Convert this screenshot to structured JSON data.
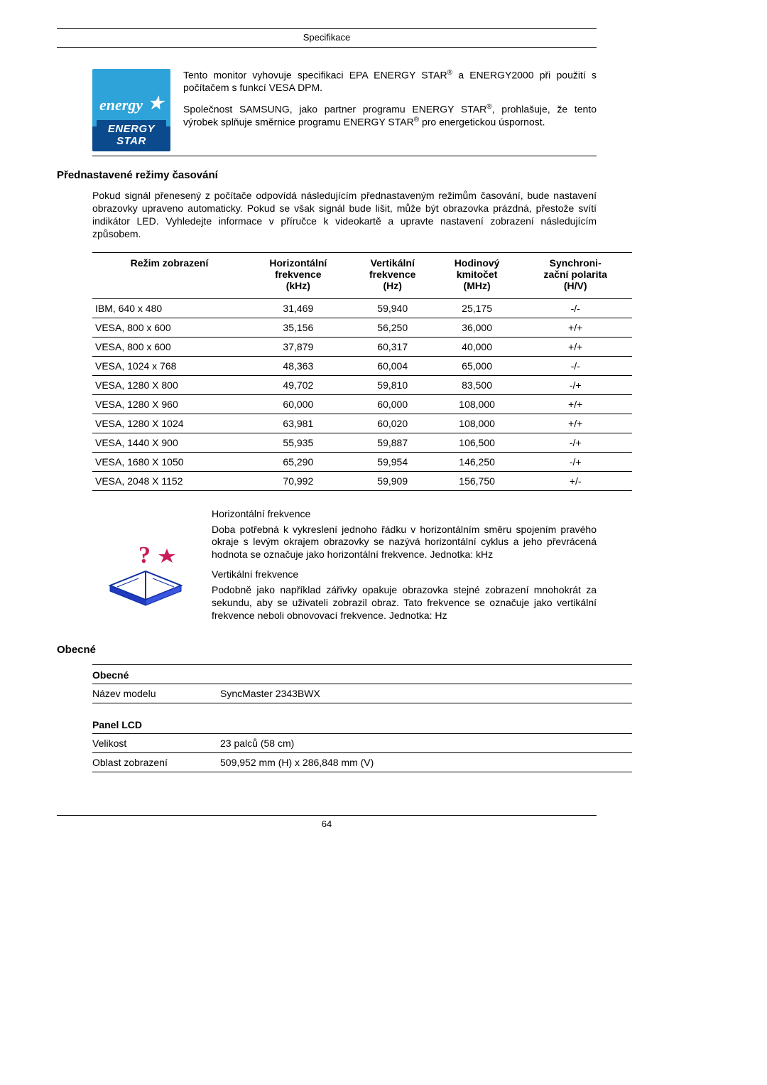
{
  "page": {
    "header": "Specifikace",
    "number": "64"
  },
  "energy": {
    "logo_script": "energy",
    "logo_bar": "ENERGY STAR",
    "para1_a": "Tento monitor vyhovuje specifikaci EPA ENERGY STAR",
    "para1_b": " a ENERGY2000 při použití s počítačem s funkcí VESA DPM.",
    "para2_a": "Společnost SAMSUNG, jako partner programu ENERGY STAR",
    "para2_b": ", prohlašuje, že tento výrobek splňuje směrnice programu ENERGY STAR",
    "para2_c": " pro energetickou úspornost."
  },
  "timing_section": {
    "title": "Přednastavené režimy časování",
    "intro": "Pokud signál přenesený z počítače odpovídá následujícím přednastaveným režimům časování, bude nastavení obrazovky upraveno automaticky. Pokud se však signál bude lišit, může být obrazovka prázdná, přestože svítí indikátor LED. Vyhledejte informace v příručce k videokartě a upravte nastavení zobrazení následujícím způsobem.",
    "headers": {
      "mode": "Režim zobrazení",
      "hfreq_l1": "Horizontální",
      "hfreq_l2": "frekvence",
      "hfreq_l3": "(kHz)",
      "vfreq_l1": "Vertikální",
      "vfreq_l2": "frekvence",
      "vfreq_l3": "(Hz)",
      "pclk_l1": "Hodinový",
      "pclk_l2": "kmitočet",
      "pclk_l3": "(MHz)",
      "pol_l1": "Synchroni-",
      "pol_l2": "zační polarita",
      "pol_l3": "(H/V)"
    },
    "rows": [
      {
        "mode": "IBM, 640 x 480",
        "h": "31,469",
        "v": "59,940",
        "p": "25,175",
        "s": "-/-"
      },
      {
        "mode": "VESA, 800 x 600",
        "h": "35,156",
        "v": "56,250",
        "p": "36,000",
        "s": "+/+"
      },
      {
        "mode": "VESA, 800 x 600",
        "h": "37,879",
        "v": "60,317",
        "p": "40,000",
        "s": "+/+"
      },
      {
        "mode": "VESA, 1024 x 768",
        "h": "48,363",
        "v": "60,004",
        "p": "65,000",
        "s": "-/-"
      },
      {
        "mode": "VESA, 1280 X 800",
        "h": "49,702",
        "v": "59,810",
        "p": "83,500",
        "s": "-/+"
      },
      {
        "mode": "VESA, 1280 X 960",
        "h": "60,000",
        "v": "60,000",
        "p": "108,000",
        "s": "+/+"
      },
      {
        "mode": "VESA, 1280 X 1024",
        "h": "63,981",
        "v": "60,020",
        "p": "108,000",
        "s": "+/+"
      },
      {
        "mode": "VESA, 1440 X 900",
        "h": "55,935",
        "v": "59,887",
        "p": "106,500",
        "s": "-/+"
      },
      {
        "mode": "VESA, 1680 X 1050",
        "h": "65,290",
        "v": "59,954",
        "p": "146,250",
        "s": "-/+"
      },
      {
        "mode": "VESA, 2048 X 1152",
        "h": "70,992",
        "v": "59,909",
        "p": "156,750",
        "s": "+/-"
      }
    ],
    "hfreq_title": "Horizontální frekvence",
    "hfreq_body": "Doba potřebná k vykreslení jednoho řádku v horizontálním směru spojením pravého okraje s levým okrajem obrazovky se nazývá horizontální cyklus a jeho převrácená hodnota se označuje jako horizontální frekvence. Jednotka: kHz",
    "vfreq_title": "Vertikální frekvence",
    "vfreq_body": "Podobně jako například zářivky opakuje obrazovka stejné zobrazení mnohokrát za sekundu, aby se uživateli zobrazil obraz. Tato frekvence se označuje jako vertikální frekvence neboli obnovovací frekvence. Jednotka: Hz"
  },
  "general": {
    "title": "Obecné",
    "head1": "Obecné",
    "row1_label": "Název modelu",
    "row1_value": "SyncMaster 2343BWX",
    "head2": "Panel LCD",
    "row2_label": "Velikost",
    "row2_value": "23 palců (58 cm)",
    "row3_label": "Oblast zobrazení",
    "row3_value": "509,952 mm (H) x 286,848 mm (V)"
  }
}
